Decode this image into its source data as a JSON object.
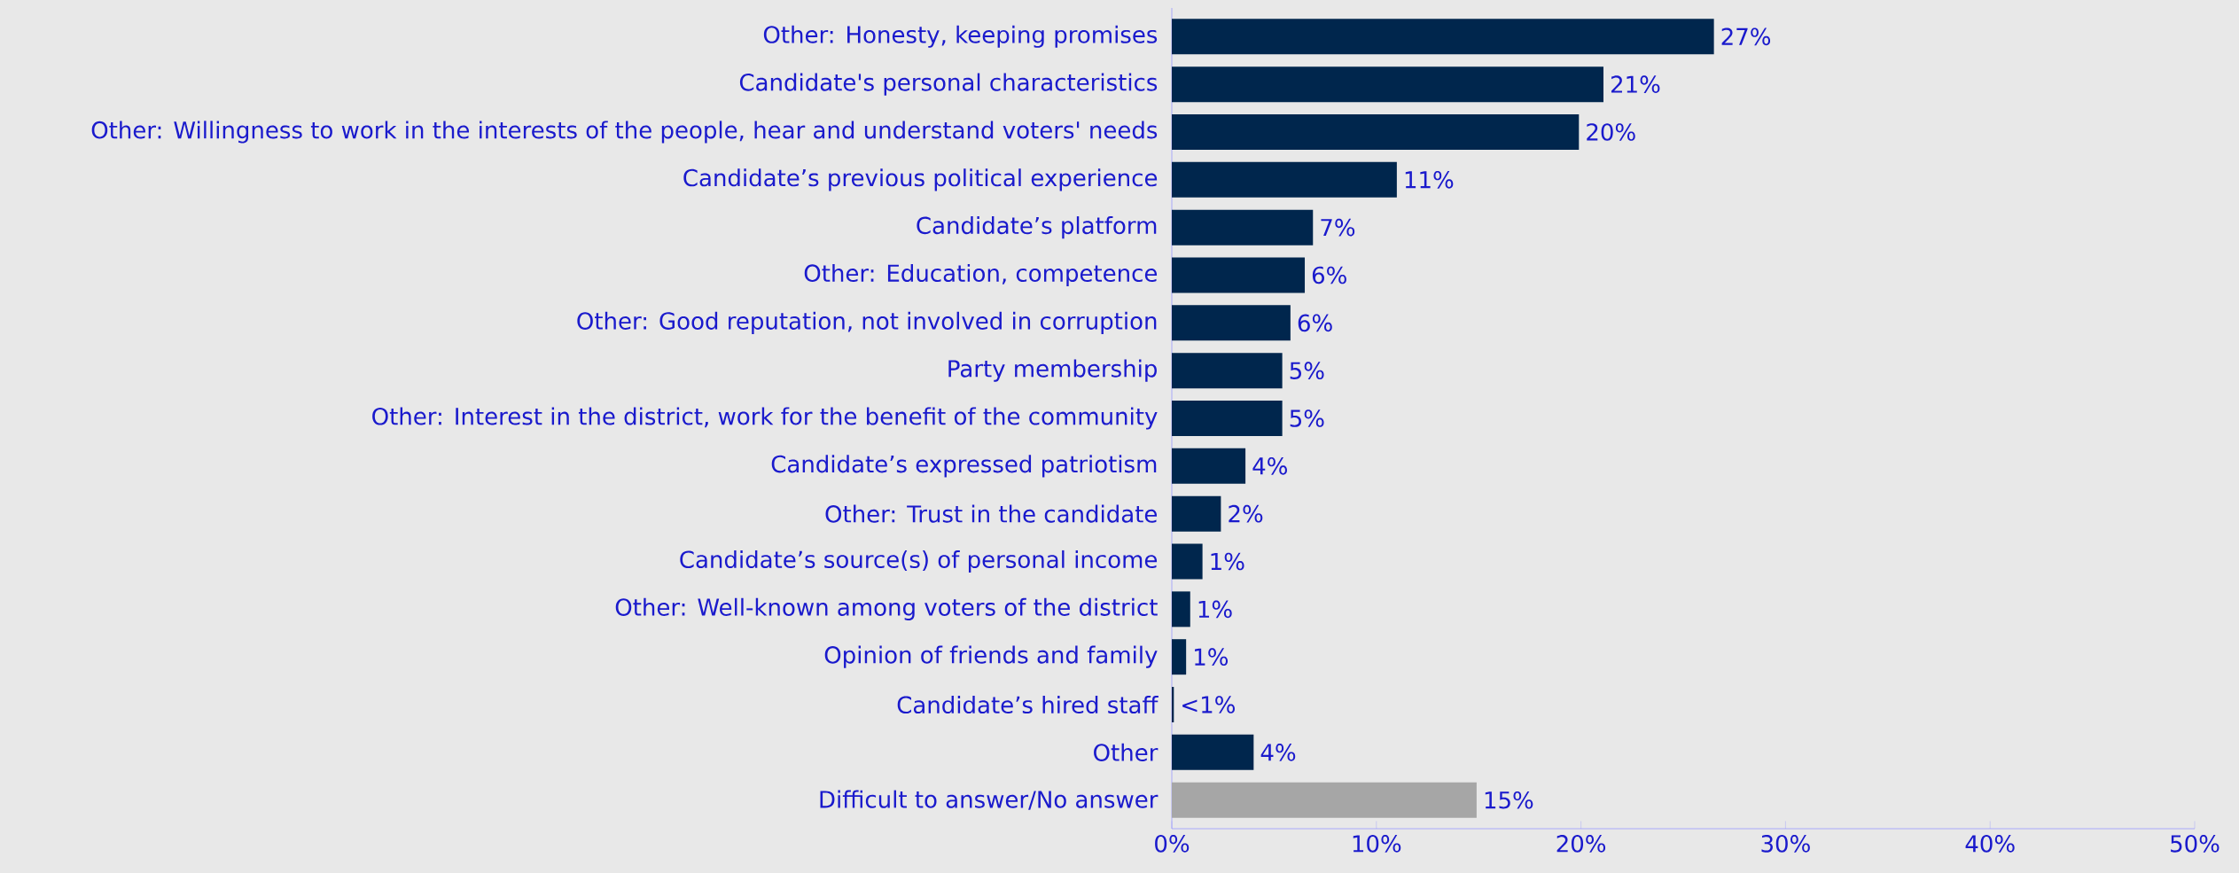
{
  "chart_data": {
    "type": "bar",
    "orientation": "horizontal",
    "categories": [
      "Other: Honesty, keeping promises",
      "Candidate's personal characteristics",
      "Other: Willingness to work in the interests of the people, hear and understand voters' needs",
      "Candidate’s previous political experience",
      "Candidate’s platform",
      "Other: Education, competence",
      "Other: Good reputation, not involved in corruption",
      "Party membership",
      "Other: Interest in the district, work for the benefit of the community",
      "Candidate’s expressed patriotism",
      "Other: Trust in the candidate",
      "Candidate’s source(s) of personal income",
      "Other: Well-known among voters of the district",
      "Opinion of friends and family",
      "Candidate’s hired staff",
      "Other",
      "Difficult to answer/No answer"
    ],
    "values": [
      26.5,
      21.1,
      19.9,
      11.0,
      6.9,
      6.5,
      5.8,
      5.4,
      5.4,
      3.6,
      2.4,
      1.5,
      0.9,
      0.7,
      0.1,
      4.0,
      14.9
    ],
    "value_labels": [
      "27%",
      "21%",
      "20%",
      "11%",
      "7%",
      "6%",
      "6%",
      "5%",
      "5%",
      "4%",
      "2%",
      "1%",
      "1%",
      "1%",
      "<1%",
      "4%",
      "15%"
    ],
    "colors": [
      "#00264d",
      "#00264d",
      "#00264d",
      "#00264d",
      "#00264d",
      "#00264d",
      "#00264d",
      "#00264d",
      "#00264d",
      "#00264d",
      "#00264d",
      "#00264d",
      "#00264d",
      "#00264d",
      "#00264d",
      "#00264d",
      "#a6a6a6"
    ],
    "xlim": [
      0,
      50
    ],
    "xticks": [
      {
        "value": 0,
        "label": "0%"
      },
      {
        "value": 10,
        "label": "10%"
      },
      {
        "value": 20,
        "label": "20%"
      },
      {
        "value": 30,
        "label": "30%"
      },
      {
        "value": 40,
        "label": "40%"
      },
      {
        "value": 50,
        "label": "50%"
      }
    ]
  }
}
